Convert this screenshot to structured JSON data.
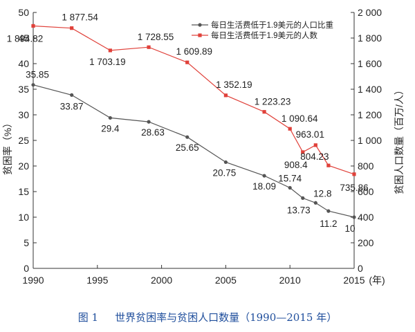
{
  "chart_data": {
    "type": "line",
    "xlabel": "(年)",
    "ylabel_left": "贫困率（%）",
    "ylabel_right": "贫困人口数量（百万/人）",
    "x_ticks": [
      "1990",
      "1995",
      "2000",
      "2005",
      "2010",
      "2015"
    ],
    "y_left_ticks": [
      "0",
      "5",
      "10",
      "15",
      "20",
      "25",
      "30",
      "35",
      "40",
      "45",
      "50"
    ],
    "y_right_ticks": [
      "0",
      "200",
      "400",
      "600",
      "800",
      "1 000",
      "1 200",
      "1 400",
      "1 600",
      "1 800",
      "2 000"
    ],
    "y_left_range": [
      0,
      50
    ],
    "y_right_range": [
      0,
      2000
    ],
    "x_range": [
      1990,
      2015
    ],
    "grid": false,
    "legend_position": "top-right",
    "series": [
      {
        "name": "每日生活费低于1.9美元的人口比重",
        "axis": "left",
        "color": "#555555",
        "marker": "circle",
        "x": [
          1990,
          1993,
          1996,
          1999,
          2002,
          2005,
          2008,
          2010,
          2011,
          2012,
          2013,
          2015
        ],
        "values": [
          35.85,
          33.87,
          29.4,
          28.63,
          25.65,
          20.75,
          18.09,
          15.74,
          13.73,
          12.8,
          11.2,
          10
        ],
        "labels": [
          "35.85",
          "33.87",
          "29.4",
          "28.63",
          "25.65",
          "20.75",
          "18.09",
          "15.74",
          "13.73",
          "12.8",
          "11.2",
          "10"
        ]
      },
      {
        "name": "每日生活费低于1.9美元的人数",
        "axis": "right",
        "color": "#e0413a",
        "marker": "square",
        "x": [
          1990,
          1993,
          1996,
          1999,
          2002,
          2005,
          2008,
          2010,
          2011,
          2012,
          2013,
          2015
        ],
        "values": [
          1894.82,
          1877.54,
          1703.19,
          1728.55,
          1609.89,
          1352.19,
          1223.23,
          1090.64,
          908.4,
          963.01,
          804.23,
          735.86
        ],
        "labels": [
          "1 894.82",
          "1 877.54",
          "1 703.19",
          "1 728.55",
          "1 609.89",
          "1 352.19",
          "1 223.23",
          "1 090.64",
          "908.4",
          "963.01",
          "804.23",
          "735.86"
        ]
      }
    ]
  },
  "caption": {
    "label": "图 1",
    "text": "世界贫困率与贫困人口数量（1990—2015 年）"
  }
}
